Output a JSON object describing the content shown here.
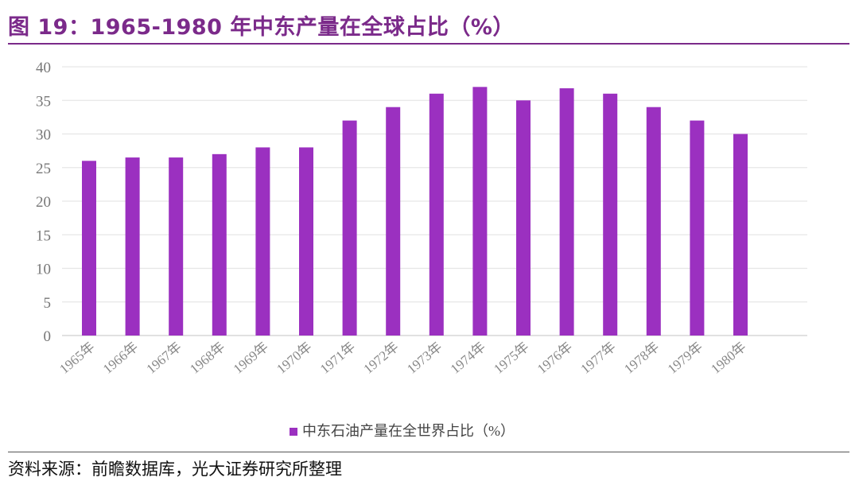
{
  "figure": {
    "title": "图 19：1965-1980 年中东产量在全球占比（%）",
    "source": "资料来源：前瞻数据库，光大证券研究所整理"
  },
  "chart_data": {
    "type": "bar",
    "categories": [
      "1965年",
      "1966年",
      "1967年",
      "1968年",
      "1969年",
      "1970年",
      "1971年",
      "1972年",
      "1973年",
      "1974年",
      "1975年",
      "1976年",
      "1977年",
      "1978年",
      "1979年",
      "1980年"
    ],
    "series": [
      {
        "name": "中东石油产量在全世界占比（%）",
        "values": [
          26,
          26.5,
          26.5,
          27,
          28,
          28,
          32,
          34,
          36,
          37,
          35,
          36.8,
          36,
          34,
          32,
          30
        ],
        "color": "#9b30c0"
      }
    ],
    "y_ticks": [
      "0",
      "5",
      "10",
      "15",
      "20",
      "25",
      "30",
      "35",
      "40"
    ],
    "ylim": [
      0,
      40
    ],
    "grid": true,
    "legend_position": "bottom",
    "title": "",
    "xlabel": "",
    "ylabel": ""
  }
}
